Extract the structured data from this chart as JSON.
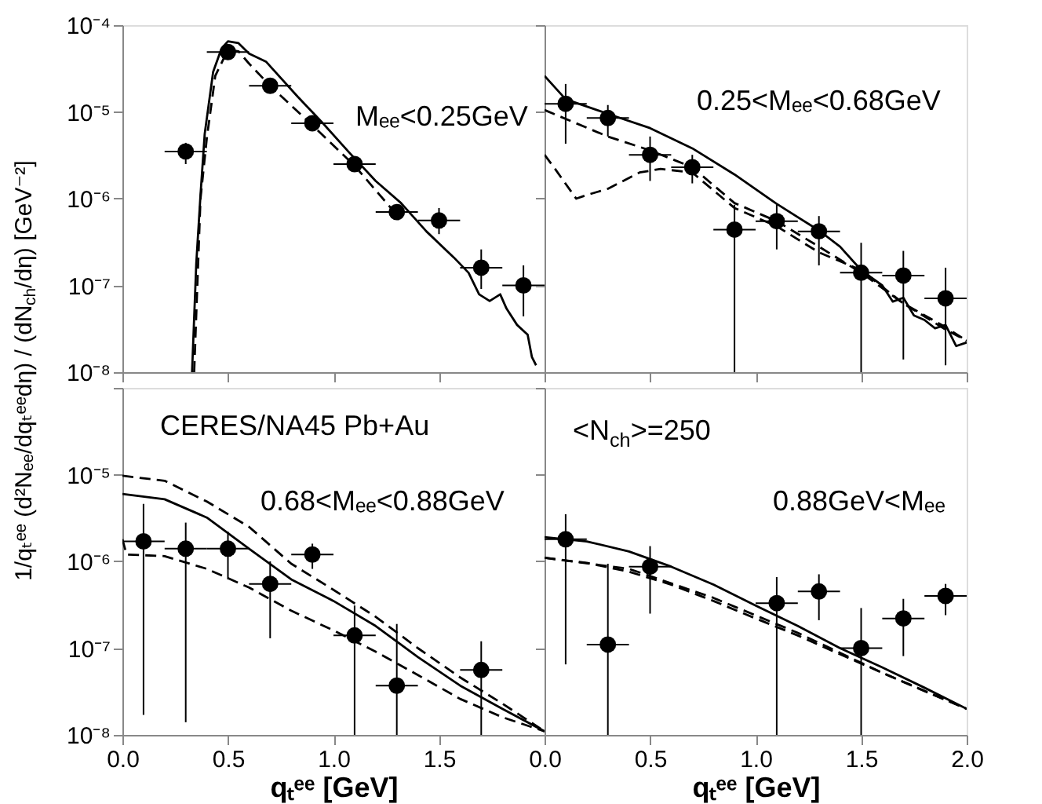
{
  "chart_data": [
    {
      "type": "scatter",
      "ylabel": "1/qₜᵉᵉ (d²Nₑₑ/dqₜᵉᵉdη) / (dN$_{ch}$/dη) [GeV⁻²]",
      "annotations": [
        "Mₑₑ<0.25GeV"
      ],
      "log": "y",
      "marker": "circle",
      "tick_labels": "y",
      "xlim": [
        0,
        2
      ],
      "ylim": [
        1e-08,
        0.0001
      ],
      "xticks": [
        {
          "value": 0,
          "label": null
        },
        {
          "value": 0.5,
          "label": null
        },
        {
          "value": 1,
          "label": null
        },
        {
          "value": 1.5,
          "label": null
        },
        {
          "value": 2,
          "label": null
        }
      ],
      "yticks": [
        {
          "value": 1e-08,
          "label": "10⁻⁸"
        },
        {
          "value": 1e-07,
          "label": "10⁻⁷"
        },
        {
          "value": 1e-06,
          "label": "10⁻⁶"
        },
        {
          "value": 1e-05,
          "label": "10⁻⁵"
        },
        {
          "value": 0.0001,
          "label": "10⁻⁴"
        }
      ],
      "series": [
        {
          "type": "line",
          "marker": "none",
          "line_style": "solid",
          "color": "#000000",
          "x": [
            0.33,
            0.35,
            0.37,
            0.39,
            0.43,
            0.47,
            0.5,
            0.55,
            0.6,
            0.68,
            0.83,
            0.95,
            1.07,
            1.2,
            1.32,
            1.44,
            1.57,
            1.64,
            1.69,
            1.74,
            1.79,
            1.82,
            1.87,
            1.92,
            1.94,
            1.96
          ],
          "values": [
            1e-08,
            1.8e-07,
            1.1e-06,
            5.6e-06,
            2.9e-05,
            5.4e-05,
            6.5e-05,
            6.2e-05,
            4.7e-05,
            3.8e-05,
            1.5e-05,
            7.4e-06,
            3.5e-06,
            1.6e-06,
            8.9e-07,
            4.2e-07,
            2.1e-07,
            1.4e-07,
            7.9e-08,
            6.6e-08,
            7.9e-08,
            5.4e-08,
            3.5e-08,
            2.7e-08,
            1.5e-08,
            1.2e-08
          ]
        },
        {
          "type": "line",
          "marker": "none",
          "line_style": "dashed",
          "color": "#000000",
          "x": [
            0.34,
            0.37,
            0.4,
            0.44,
            0.5,
            0.55,
            0.6,
            0.7,
            0.9,
            1.1,
            1.3
          ],
          "values": [
            1e-08,
            1e-06,
            5e-06,
            2.6e-05,
            5.2e-05,
            5e-05,
            3.6e-05,
            2e-05,
            7e-06,
            2.4e-06,
            6.5e-07
          ]
        },
        {
          "type": "scatter",
          "color": "#000000",
          "x": [
            0.3,
            0.5,
            0.7,
            0.9,
            1.1,
            1.3,
            1.5,
            1.7,
            1.9
          ],
          "values": [
            3.5e-06,
            4.9e-05,
            2e-05,
            7.4e-06,
            2.5e-06,
            7e-07,
            5.6e-07,
            1.6e-07,
            1e-07
          ],
          "errors": [
            [
              2.5e-06,
              4.4e-06
            ],
            null,
            null,
            null,
            null,
            null,
            [
              3.9e-07,
              7.8e-07
            ],
            [
              9.1e-08,
              2.6e-07
            ],
            [
              4.4e-08,
              1.7e-07
            ]
          ],
          "xerrors": [
            0.1,
            0.1,
            0.1,
            0.1,
            0.1,
            0.1,
            0.1,
            0.1,
            0.1
          ]
        }
      ]
    },
    {
      "type": "scatter",
      "annotations": [
        "0.25<Mₑₑ<0.68GeV"
      ],
      "log": "y",
      "marker": "circle",
      "tick_labels": false,
      "xlim": [
        0,
        2
      ],
      "ylim": [
        1e-08,
        0.0001
      ],
      "xticks": [
        {
          "value": 0,
          "label": null
        },
        {
          "value": 0.5,
          "label": null
        },
        {
          "value": 1,
          "label": null
        },
        {
          "value": 1.5,
          "label": null
        },
        {
          "value": 2,
          "label": null
        }
      ],
      "yticks": [
        {
          "value": 1e-08,
          "label": null
        },
        {
          "value": 1e-07,
          "label": null
        },
        {
          "value": 1e-06,
          "label": null
        },
        {
          "value": 1e-05,
          "label": null
        },
        {
          "value": 0.0001,
          "label": null
        }
      ],
      "series": [
        {
          "type": "line",
          "marker": "none",
          "line_style": "solid",
          "color": "#000000",
          "x": [
            0,
            0.1,
            0.3,
            0.5,
            0.7,
            0.9,
            1.1,
            1.3,
            1.4,
            1.5,
            1.6,
            1.65,
            1.7,
            1.75,
            1.8,
            1.85,
            1.9,
            1.95,
            2
          ],
          "values": [
            2.6e-05,
            1.4e-05,
            9.5e-06,
            6.5e-06,
            3.8e-06,
            1.9e-06,
            8.7e-07,
            4.3e-07,
            2.8e-07,
            1.5e-07,
            1e-07,
            6.5e-08,
            7.2e-08,
            4.5e-08,
            4e-08,
            3.2e-08,
            3.5e-08,
            2e-08,
            2.2e-08
          ]
        },
        {
          "type": "line",
          "marker": "none",
          "line_style": "dashed",
          "color": "#000000",
          "x": [
            0,
            0.3,
            0.5,
            0.7,
            0.9,
            1.1,
            1.3,
            1.5,
            1.7,
            1.9,
            2
          ],
          "values": [
            1.05e-05,
            5.2e-06,
            3.6e-06,
            2.3e-06,
            8.9e-07,
            5.5e-07,
            2.8e-07,
            1.4e-07,
            6.2e-08,
            3.1e-08,
            2.3e-08
          ]
        },
        {
          "type": "line",
          "marker": "none",
          "line_style": "dashed",
          "color": "#000000",
          "x": [
            0,
            0.05,
            0.15,
            0.2,
            0.3,
            0.45,
            0.55,
            0.7,
            0.9,
            1.1,
            1.3,
            1.5,
            1.7,
            1.9,
            2
          ],
          "values": [
            3.2e-06,
            2.2e-06,
            1e-06,
            1.1e-06,
            1.3e-06,
            2e-06,
            2.2e-06,
            2e-06,
            7.8e-07,
            4.8e-07,
            2.4e-07,
            1.5e-07,
            6.2e-08,
            3.3e-08,
            2.3e-08
          ]
        },
        {
          "type": "scatter",
          "color": "#000000",
          "x": [
            0.1,
            0.3,
            0.5,
            0.7,
            0.9,
            1.1,
            1.3,
            1.5,
            1.7,
            1.9
          ],
          "values": [
            1.24e-05,
            8.5e-06,
            3.2e-06,
            2.3e-06,
            4.4e-07,
            5.5e-07,
            4.2e-07,
            1.4e-07,
            1.3e-07,
            7.1e-08
          ],
          "errors": [
            [
              4.3e-06,
              2.1e-05
            ],
            [
              5.2e-06,
              1.2e-05
            ],
            [
              1.6e-06,
              5.2e-06
            ],
            [
              1.5e-06,
              3.2e-06
            ],
            [
              1e-08,
              8.5e-07
            ],
            [
              2.6e-07,
              8.5e-07
            ],
            [
              1.7e-07,
              6.3e-07
            ],
            [
              1e-08,
              3.1e-07
            ],
            [
              1.4e-08,
              2.5e-07
            ],
            [
              1.2e-08,
              1.6e-07
            ]
          ],
          "xerrors": [
            0.1,
            0.1,
            0.1,
            0.1,
            0.1,
            0.1,
            0.1,
            0.1,
            0.1,
            0.1
          ]
        }
      ]
    },
    {
      "type": "scatter",
      "xlabel": "qₜᵉᵉ [GeV]",
      "annotations": [
        "CERES/NA45  Pb+Au",
        "0.68<Mₑₑ<0.88GeV"
      ],
      "log": "y",
      "marker": "circle",
      "xlim": [
        0,
        2
      ],
      "ylim": [
        1e-08,
        0.0001
      ],
      "xticks": [
        {
          "value": 0,
          "label": "0.0"
        },
        {
          "value": 0.5,
          "label": "0.5"
        },
        {
          "value": 1,
          "label": "1.0"
        },
        {
          "value": 1.5,
          "label": "1.5"
        },
        {
          "value": 2,
          "label": null
        }
      ],
      "yticks": [
        {
          "value": 1e-08,
          "label": "10⁻⁸"
        },
        {
          "value": 1e-07,
          "label": "10⁻⁷"
        },
        {
          "value": 1e-06,
          "label": "10⁻⁶"
        },
        {
          "value": 1e-05,
          "label": "10⁻⁵"
        },
        {
          "value": 0.0001,
          "label": null
        }
      ],
      "series": [
        {
          "type": "line",
          "marker": "none",
          "line_style": "solid",
          "color": "#000000",
          "x": [
            0,
            0.2,
            0.4,
            0.6,
            0.8,
            1,
            1.2,
            1.4,
            1.6,
            1.8,
            2
          ],
          "values": [
            6e-06,
            5.2e-06,
            3.2e-06,
            1.4e-06,
            6.2e-07,
            3.5e-07,
            1.8e-07,
            7.9e-08,
            3.7e-08,
            2e-08,
            1.1e-08
          ]
        },
        {
          "type": "line",
          "marker": "none",
          "line_style": "dashed",
          "color": "#000000",
          "x": [
            0,
            0.2,
            0.4,
            0.6,
            0.8,
            1,
            1.2,
            1.4,
            1.6,
            1.8,
            2
          ],
          "values": [
            9.7e-06,
            8.5e-06,
            4.9e-06,
            2.5e-06,
            9.4e-07,
            4.7e-07,
            2.3e-07,
            1e-07,
            4.6e-08,
            2.3e-08,
            1.1e-08
          ]
        },
        {
          "type": "line",
          "marker": "none",
          "line_style": "dashed",
          "color": "#000000",
          "x": [
            0,
            0.02,
            0.2,
            0.4,
            0.6,
            0.8,
            1,
            1.2,
            1.4,
            1.6,
            1.8,
            2
          ],
          "values": [
            1.8e-06,
            1.2e-06,
            1.15e-06,
            8.2e-07,
            5e-07,
            2.7e-07,
            1.6e-07,
            9.1e-08,
            4.9e-08,
            2.6e-08,
            1.6e-08,
            1.1e-08
          ]
        },
        {
          "type": "scatter",
          "color": "#000000",
          "x": [
            0.1,
            0.3,
            0.5,
            0.7,
            0.9,
            1.1,
            1.3,
            1.7
          ],
          "values": [
            1.7e-06,
            1.4e-06,
            1.4e-06,
            5.5e-07,
            1.2e-06,
            1.4e-07,
            3.7e-08,
            5.6e-08
          ],
          "errors": [
            [
              1.7e-08,
              4.6e-06
            ],
            [
              1.4e-08,
              2.8e-06
            ],
            [
              6.2e-07,
              2.2e-06
            ],
            [
              1.3e-07,
              1e-06
            ],
            [
              8.2e-07,
              1.6e-06
            ],
            [
              1e-08,
              3.1e-07
            ],
            [
              1e-08,
              1.9e-07
            ],
            [
              1e-08,
              1.2e-07
            ]
          ],
          "xerrors": [
            0.1,
            0.1,
            0.1,
            0.1,
            0.1,
            0.1,
            0.1,
            0.1
          ]
        }
      ]
    },
    {
      "type": "scatter",
      "xlabel": "qₜᵉᵉ [GeV]",
      "annotations": [
        "<N$_{ch}$>=250",
        "0.88GeV<Mₑₑ"
      ],
      "log": "y",
      "marker": "circle",
      "tick_labels": "x",
      "xlim": [
        0,
        2
      ],
      "ylim": [
        1e-08,
        0.0001
      ],
      "xticks": [
        {
          "value": 0,
          "label": "0.0"
        },
        {
          "value": 0.5,
          "label": "0.5"
        },
        {
          "value": 1,
          "label": "1.0"
        },
        {
          "value": 1.5,
          "label": "1.5"
        },
        {
          "value": 2,
          "label": "2.0"
        }
      ],
      "yticks": [
        {
          "value": 1e-08,
          "label": null
        },
        {
          "value": 1e-07,
          "label": null
        },
        {
          "value": 1e-06,
          "label": null
        },
        {
          "value": 1e-05,
          "label": null
        },
        {
          "value": 0.0001,
          "label": null
        }
      ],
      "series": [
        {
          "type": "line",
          "marker": "none",
          "line_style": "solid",
          "color": "#000000",
          "x": [
            0,
            0.2,
            0.4,
            0.6,
            0.8,
            1,
            1.2,
            1.4,
            1.6,
            1.8,
            2
          ],
          "values": [
            1.9e-06,
            1.7e-06,
            1.3e-06,
            8.7e-07,
            5.4e-07,
            3.1e-07,
            1.8e-07,
            1e-07,
            6e-08,
            3.5e-08,
            2e-08
          ]
        },
        {
          "type": "line",
          "marker": "none",
          "line_style": "dashed",
          "color": "#000000",
          "x": [
            0,
            0.2,
            0.4,
            0.6,
            0.8,
            1,
            1.2,
            1.4,
            1.6,
            1.8,
            2
          ],
          "values": [
            1.1e-06,
            9.6e-07,
            7.6e-07,
            5.4e-07,
            3.5e-07,
            2.2e-07,
            1.4e-07,
            8.5e-08,
            5.2e-08,
            3.2e-08,
            2e-08
          ]
        },
        {
          "type": "line",
          "marker": "none",
          "line_style": "dashed",
          "color": "#000000",
          "x": [
            0,
            0.4,
            0.8,
            1.2,
            1.6,
            2
          ],
          "values": [
            1.1e-06,
            8.2e-07,
            3.8e-07,
            1.5e-07,
            5.2e-08,
            2e-08
          ]
        },
        {
          "type": "scatter",
          "color": "#000000",
          "x": [
            0.1,
            0.3,
            0.5,
            1.1,
            1.3,
            1.5,
            1.7,
            1.9
          ],
          "values": [
            1.8e-06,
            1.1e-07,
            8.7e-07,
            3.3e-07,
            4.5e-07,
            1e-07,
            2.2e-07,
            4e-07
          ],
          "errors": [
            [
              6.5e-08,
              3.5e-06
            ],
            [
              1e-08,
              9.4e-07
            ],
            [
              2.5e-07,
              1.5e-06
            ],
            [
              1e-08,
              6.6e-07
            ],
            [
              2.1e-07,
              7.1e-07
            ],
            [
              1e-08,
              2.9e-07
            ],
            [
              8.1e-08,
              3.7e-07
            ],
            [
              2.4e-07,
              5.5e-07
            ]
          ],
          "xerrors": [
            0.1,
            0.1,
            0.1,
            0.1,
            0.1,
            0.1,
            0.1,
            0.1
          ]
        }
      ]
    }
  ]
}
